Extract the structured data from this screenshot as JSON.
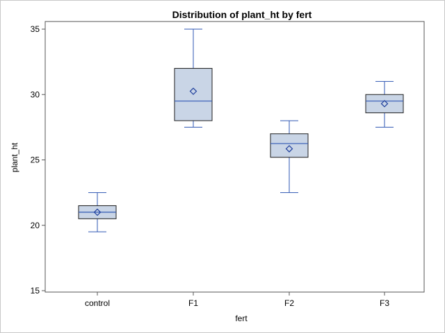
{
  "chart_data": {
    "type": "box",
    "title": "Distribution of plant_ht by fert",
    "xlabel": "fert",
    "ylabel": "plant_ht",
    "ylim": [
      15,
      35
    ],
    "yticks": [
      15,
      20,
      25,
      30,
      35
    ],
    "categories": [
      "control",
      "F1",
      "F2",
      "F3"
    ],
    "boxes": [
      {
        "category": "control",
        "min": 19.5,
        "q1": 20.5,
        "median": 21.0,
        "q3": 21.5,
        "max": 22.5,
        "mean": 21.0
      },
      {
        "category": "F1",
        "min": 27.5,
        "q1": 28.0,
        "median": 29.5,
        "q3": 32.0,
        "max": 35.0,
        "mean": 30.25
      },
      {
        "category": "F2",
        "min": 22.5,
        "q1": 25.2,
        "median": 26.25,
        "q3": 27.0,
        "max": 28.0,
        "mean": 25.85
      },
      {
        "category": "F3",
        "min": 27.5,
        "q1": 28.6,
        "median": 29.5,
        "q3": 30.0,
        "max": 31.0,
        "mean": 29.3
      }
    ],
    "grid": false,
    "colors": {
      "box_fill": "#c9d5e6",
      "box_outline": "#1c1c1c",
      "whisker": "#2e56b3",
      "median": "#2e56b3",
      "mean_marker": "#1f3f9c",
      "axis": "#555555"
    }
  }
}
